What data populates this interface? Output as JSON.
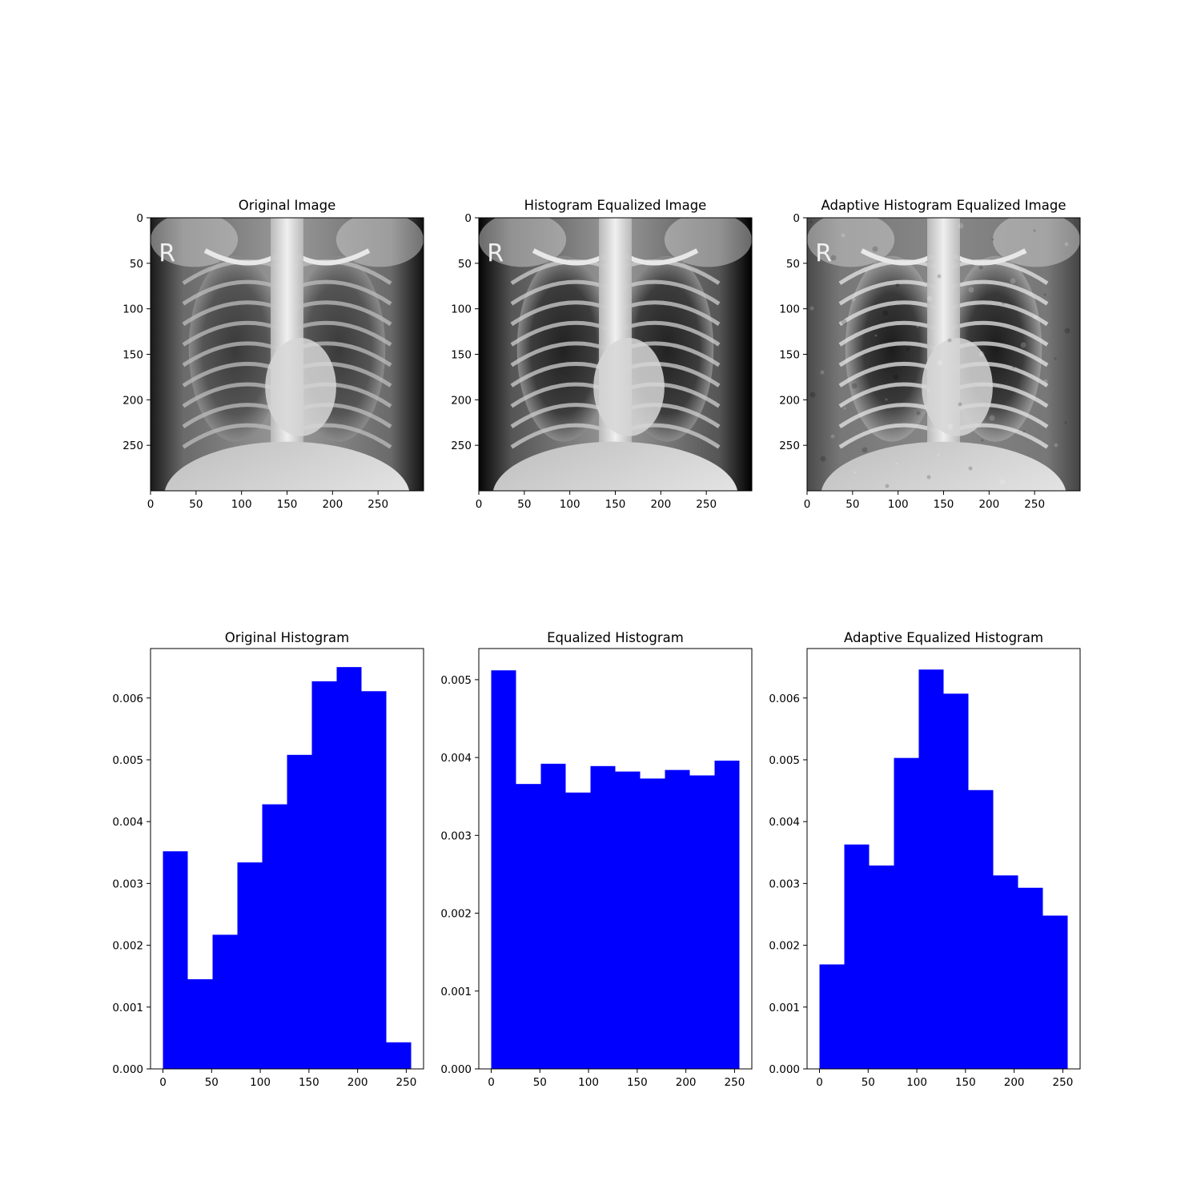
{
  "figure": {
    "image_panels": [
      {
        "title": "Original Image",
        "style": "original",
        "xlim": [
          0,
          300
        ],
        "ylim": [
          300,
          0
        ],
        "xticks": [
          0,
          50,
          100,
          150,
          200,
          250
        ],
        "yticks": [
          0,
          50,
          100,
          150,
          200,
          250
        ]
      },
      {
        "title": "Histogram Equalized Image",
        "style": "equalized",
        "xlim": [
          0,
          300
        ],
        "ylim": [
          300,
          0
        ],
        "xticks": [
          0,
          50,
          100,
          150,
          200,
          250
        ],
        "yticks": [
          0,
          50,
          100,
          150,
          200,
          250
        ]
      },
      {
        "title": "Adaptive Histogram Equalized Image",
        "style": "adaptive",
        "xlim": [
          0,
          300
        ],
        "ylim": [
          300,
          0
        ],
        "xticks": [
          0,
          50,
          100,
          150,
          200,
          250
        ],
        "yticks": [
          0,
          50,
          100,
          150,
          200,
          250
        ]
      }
    ],
    "image_marker_text": "R",
    "colors": {
      "bar": "#0000ff",
      "axes": "#000000",
      "background": "#ffffff"
    }
  },
  "chart_data": [
    {
      "type": "bar",
      "title": "Original Histogram",
      "bin_edges": [
        0,
        25.5,
        51,
        76.5,
        102,
        127.5,
        153,
        178.5,
        204,
        229.5,
        255
      ],
      "values": [
        0.00352,
        0.00145,
        0.00217,
        0.00334,
        0.00428,
        0.00508,
        0.00627,
        0.0065,
        0.00611,
        0.00043
      ],
      "xlim": [
        -12.75,
        267.75
      ],
      "ylim": [
        0,
        0.0068
      ],
      "xticks": [
        0,
        50,
        100,
        150,
        200,
        250
      ],
      "yticks": [
        "0.000",
        "0.001",
        "0.002",
        "0.003",
        "0.004",
        "0.005",
        "0.006"
      ]
    },
    {
      "type": "bar",
      "title": "Equalized Histogram",
      "bin_edges": [
        0,
        25.5,
        51,
        76.5,
        102,
        127.5,
        153,
        178.5,
        204,
        229.5,
        255
      ],
      "values": [
        0.00512,
        0.00366,
        0.00392,
        0.00355,
        0.00389,
        0.00382,
        0.00373,
        0.00384,
        0.00377,
        0.00396
      ],
      "xlim": [
        -12.75,
        267.75
      ],
      "ylim": [
        0,
        0.0054
      ],
      "xticks": [
        0,
        50,
        100,
        150,
        200,
        250
      ],
      "yticks": [
        "0.000",
        "0.001",
        "0.002",
        "0.003",
        "0.004",
        "0.005"
      ]
    },
    {
      "type": "bar",
      "title": "Adaptive Equalized Histogram",
      "bin_edges": [
        0,
        25.5,
        51,
        76.5,
        102,
        127.5,
        153,
        178.5,
        204,
        229.5,
        255
      ],
      "values": [
        0.00169,
        0.00363,
        0.00329,
        0.00503,
        0.00646,
        0.00607,
        0.00451,
        0.00313,
        0.00293,
        0.00248
      ],
      "xlim": [
        -12.75,
        267.75
      ],
      "ylim": [
        0,
        0.0068
      ],
      "xticks": [
        0,
        50,
        100,
        150,
        200,
        250
      ],
      "yticks": [
        "0.000",
        "0.001",
        "0.002",
        "0.003",
        "0.004",
        "0.005",
        "0.006"
      ]
    }
  ]
}
